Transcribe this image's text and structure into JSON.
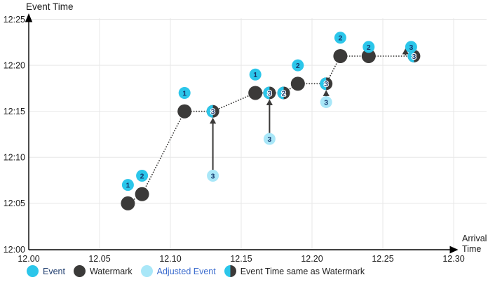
{
  "chart_data": {
    "type": "scatter",
    "y_title": "Event Time",
    "x_title": "Arrival Time",
    "x_axis": {
      "min": 12.0,
      "max": 12.3,
      "tick_values": [
        12.0,
        12.05,
        12.1,
        12.15,
        12.2,
        12.25,
        12.3
      ],
      "tick_labels": [
        "12.00",
        "12.05",
        "12.10",
        "12.15",
        "12.20",
        "12.25",
        "12.30"
      ]
    },
    "y_axis": {
      "tick_minutes": [
        0,
        5,
        10,
        15,
        20,
        25
      ],
      "tick_labels": [
        "12:00",
        "12:05",
        "12:10",
        "12:15",
        "12:20",
        "12:25"
      ]
    },
    "series": [
      {
        "name": "Event",
        "marker": "event",
        "points": [
          {
            "label": "1",
            "x": 12.07,
            "event_time": "12:07"
          },
          {
            "label": "2",
            "x": 12.08,
            "event_time": "12:08"
          },
          {
            "label": "1",
            "x": 12.11,
            "event_time": "12:17"
          },
          {
            "label": "1",
            "x": 12.16,
            "event_time": "12:19"
          },
          {
            "label": "2",
            "x": 12.19,
            "event_time": "12:20"
          },
          {
            "label": "2",
            "x": 12.22,
            "event_time": "12:23"
          },
          {
            "label": "2",
            "x": 12.24,
            "event_time": "12:22"
          },
          {
            "label": "3",
            "x": 12.27,
            "event_time": "12:22"
          }
        ]
      },
      {
        "name": "Watermark",
        "marker": "watermark",
        "points": [
          {
            "x": 12.07,
            "event_time": "12:05"
          },
          {
            "x": 12.08,
            "event_time": "12:06"
          },
          {
            "x": 12.11,
            "event_time": "12:15"
          },
          {
            "x": 12.16,
            "event_time": "12:17"
          },
          {
            "x": 12.19,
            "event_time": "12:18"
          },
          {
            "x": 12.22,
            "event_time": "12:21"
          },
          {
            "x": 12.24,
            "event_time": "12:21"
          }
        ]
      },
      {
        "name": "Adjusted Event",
        "marker": "adjusted",
        "points": [
          {
            "label": "3",
            "x": 12.13,
            "event_time": "12:08"
          },
          {
            "label": "3",
            "x": 12.17,
            "event_time": "12:12"
          },
          {
            "label": "3",
            "x": 12.21,
            "event_time": "12:16"
          }
        ]
      },
      {
        "name": "Event Time same as Watermark",
        "marker": "half",
        "points": [
          {
            "label": "3",
            "x": 12.13,
            "event_time": "12:15"
          },
          {
            "label": "3",
            "x": 12.17,
            "event_time": "12:17"
          },
          {
            "label": "2",
            "x": 12.18,
            "event_time": "12:17"
          },
          {
            "label": "3",
            "x": 12.21,
            "event_time": "12:18"
          },
          {
            "label": "3",
            "x": 12.272,
            "event_time": "12:21"
          }
        ]
      }
    ],
    "watermark_line": [
      {
        "x": 12.07,
        "event_time": "12:05"
      },
      {
        "x": 12.08,
        "event_time": "12:06"
      },
      {
        "x": 12.11,
        "event_time": "12:15"
      },
      {
        "x": 12.13,
        "event_time": "12:15"
      },
      {
        "x": 12.16,
        "event_time": "12:17"
      },
      {
        "x": 12.18,
        "event_time": "12:17"
      },
      {
        "x": 12.19,
        "event_time": "12:18"
      },
      {
        "x": 12.21,
        "event_time": "12:18"
      },
      {
        "x": 12.22,
        "event_time": "12:21"
      },
      {
        "x": 12.24,
        "event_time": "12:21"
      },
      {
        "x": 12.272,
        "event_time": "12:21"
      }
    ],
    "arrows": [
      {
        "x": 12.13,
        "from_time": "12:08",
        "to_time": "12:15"
      },
      {
        "x": 12.17,
        "from_time": "12:12",
        "to_time": "12:17"
      },
      {
        "x": 12.21,
        "from_time": "12:16",
        "to_time": "12:18"
      },
      {
        "x": 12.266,
        "from_time": "12:21",
        "to_time": "12:22"
      }
    ],
    "legend_items": [
      {
        "label": "Event",
        "swatch": "event",
        "text_color": "#1E3C6E"
      },
      {
        "label": "Watermark",
        "swatch": "watermark",
        "text_color": "#222222"
      },
      {
        "label": "Adjusted Event",
        "swatch": "adjusted",
        "text_color": "#3A6BCE"
      },
      {
        "label": "Event Time same as Watermark",
        "swatch": "half",
        "text_color": "#222222"
      }
    ],
    "colors": {
      "event": "#2BC6EA",
      "adjusted": "#A9E7F8",
      "watermark": "#3B3A39",
      "digit": "#16386E",
      "grid": "#E7E7E7",
      "axis": "#000000",
      "arrow": "#3B3A39"
    }
  }
}
